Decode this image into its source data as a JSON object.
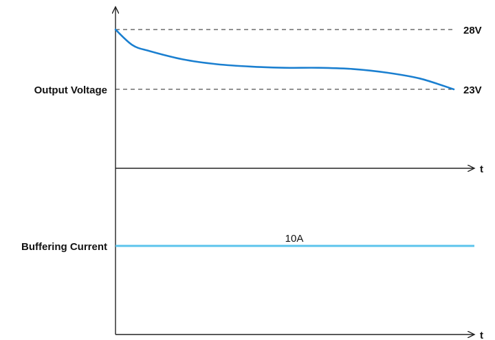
{
  "chart_data": [
    {
      "type": "line",
      "ylabel": "Output Voltage",
      "xlabel": "t",
      "reference_lines": [
        {
          "value": 28,
          "label": "28V"
        },
        {
          "value": 23,
          "label": "23V"
        }
      ],
      "series": [
        {
          "x": [
            0,
            0.05,
            0.1,
            0.2,
            0.3,
            0.4,
            0.5,
            0.6,
            0.7,
            0.8,
            0.9,
            1.0
          ],
          "values": [
            28,
            26.7,
            26.2,
            25.5,
            25.1,
            24.9,
            24.8,
            24.8,
            24.7,
            24.4,
            23.9,
            23
          ],
          "color": "#1a7fd0"
        }
      ]
    },
    {
      "type": "line",
      "ylabel": "Buffering Current",
      "xlabel": "t",
      "series": [
        {
          "label": "10A",
          "x": [
            0,
            1
          ],
          "values": [
            10,
            10
          ],
          "color": "#5bc4ec"
        }
      ]
    }
  ]
}
